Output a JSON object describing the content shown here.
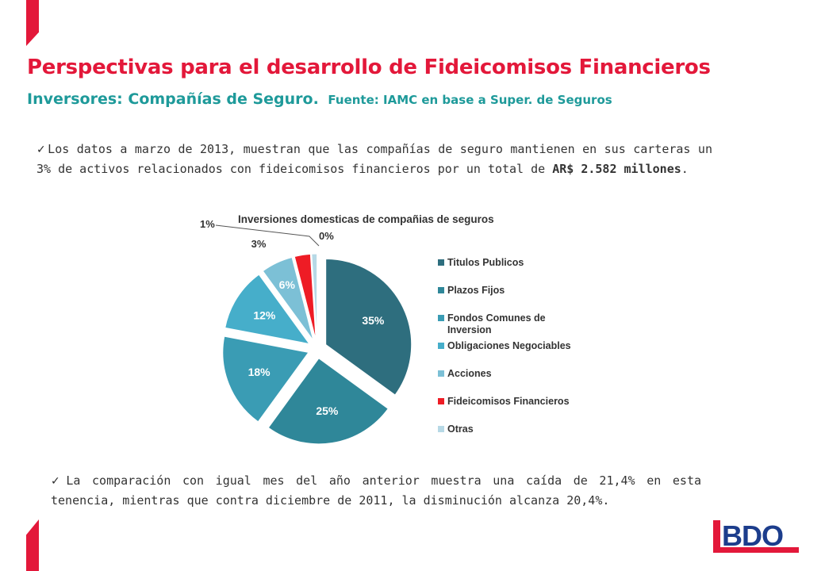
{
  "slide": {
    "title": "Perspectivas para el desarrollo de Fideicomisos Financieros",
    "subtitle": "Inversores: Compañías de Seguro.",
    "source": "Fuente: IAMC en base a Super. de Seguros",
    "bullet1": {
      "check": "✓",
      "text_before": "Los datos a marzo de 2013, muestran que las compañías de seguro mantienen en sus carteras un 3% de activos relacionados con fideicomisos financieros por un total de ",
      "highlight": "AR$ 2.582 millones",
      "text_after": "."
    },
    "bullet2": {
      "check": "✓",
      "text": "La comparación con igual mes del año anterior muestra una caída de 21,4% en esta tenencia, mientras que contra diciembre de 2011, la disminución alcanza 20,4%."
    },
    "logo": {
      "text": "BDO"
    }
  },
  "colors": {
    "brand_red": "#E3183A",
    "teal": "#1E9A9A",
    "text": "#333333"
  },
  "chart_data": {
    "type": "pie",
    "title": "Inversiones domesticas de compañias de seguros",
    "legend_position": "right",
    "categories": [
      "Titulos  Publicos",
      "Plazos Fijos",
      "Fondos Comunes  de Inversion",
      "Obligaciones  Negociables",
      "Acciones",
      "Fideicomisos  Financieros",
      "Otras"
    ],
    "values": [
      35,
      25,
      18,
      12,
      6,
      3,
      1
    ],
    "data_labels": [
      "35%",
      "25%",
      "18%",
      "12%",
      "6%",
      "3%",
      "1%"
    ],
    "extra_label": "0%",
    "colors": [
      "#2E6E7E",
      "#2F8799",
      "#3A9CB4",
      "#46AECA",
      "#7CC0D6",
      "#EE1C25",
      "#B7D9E6"
    ]
  }
}
